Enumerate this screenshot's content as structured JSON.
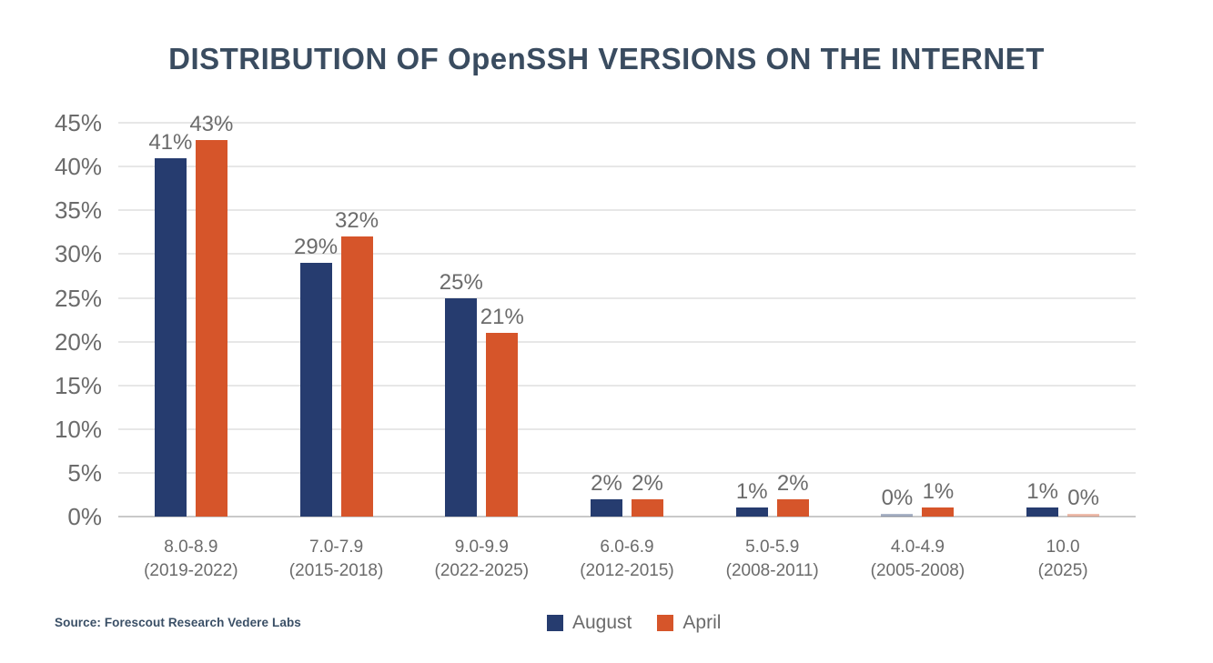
{
  "title": "DISTRIBUTION OF OpenSSH VERSIONS ON THE INTERNET",
  "source_note": "Source: Forescout Research Vedere Labs",
  "colors": {
    "august": "#263C6F",
    "april": "#D6552A",
    "title_text": "#3A4C60",
    "axis_text": "#6B6B6B",
    "gridline": "#E7E7E7",
    "baseline": "#C9C9C9",
    "source_text": "#3A4F66",
    "background": "#FFFFFF"
  },
  "legend": {
    "position": "bottom",
    "items": [
      {
        "label": "August",
        "color": "#263C6F"
      },
      {
        "label": "April",
        "color": "#D6552A"
      }
    ]
  },
  "y_axis": {
    "tick_labels": [
      "45%",
      "40%",
      "35%",
      "30%",
      "25%",
      "20%",
      "15%",
      "10%",
      "5%",
      "0%"
    ]
  },
  "chart_data": {
    "type": "bar",
    "title": "DISTRIBUTION OF OpenSSH VERSIONS ON THE INTERNET",
    "categories": [
      {
        "version": "8.0-8.9",
        "years": "(2019-2022)"
      },
      {
        "version": "7.0-7.9",
        "years": "(2015-2018)"
      },
      {
        "version": "9.0-9.9",
        "years": "(2022-2025)"
      },
      {
        "version": "6.0-6.9",
        "years": "(2012-2015)"
      },
      {
        "version": "5.0-5.9",
        "years": "(2008-2011)"
      },
      {
        "version": "4.0-4.9",
        "years": "(2005-2008)"
      },
      {
        "version": "10.0",
        "years": "(2025)"
      }
    ],
    "series": [
      {
        "name": "August",
        "color": "#263C6F",
        "values": [
          41,
          29,
          25,
          2,
          1,
          0,
          1
        ]
      },
      {
        "name": "April",
        "color": "#D6552A",
        "values": [
          43,
          32,
          21,
          2,
          2,
          1,
          0
        ]
      }
    ],
    "value_label_format": "{v}%",
    "xlabel": "",
    "ylabel": "",
    "ylim": [
      0,
      45
    ],
    "y_tick_step": 5,
    "grid": "horizontal",
    "legend_position": "bottom"
  }
}
